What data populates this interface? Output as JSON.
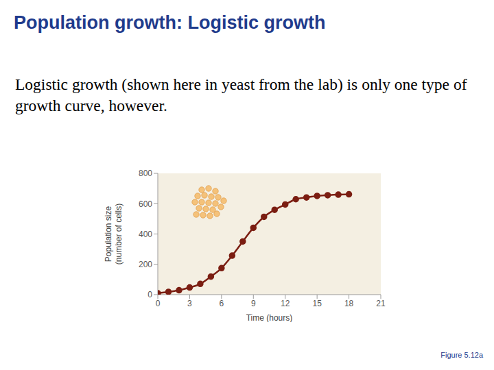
{
  "slide": {
    "title": "Population growth: Logistic growth",
    "text": "Logistic growth (shown here in yeast from the lab) is only one type of growth curve, however.",
    "figure": "Figure 5.12a"
  },
  "chart_data": {
    "type": "line",
    "x": [
      0,
      1,
      2,
      3,
      4,
      5,
      6,
      7,
      8,
      9,
      10,
      11,
      12,
      13,
      14,
      15,
      16,
      17,
      18
    ],
    "series": [
      {
        "name": "Population size",
        "color": "#7b1e12",
        "marker": "circle",
        "values": [
          9.6,
          18.3,
          29,
          47.2,
          71.1,
          119.1,
          174.6,
          257.3,
          350.7,
          441,
          513.3,
          559.7,
          594.8,
          629.4,
          640.8,
          651.1,
          655.9,
          659.6,
          661.8
        ]
      }
    ],
    "xlabel": "Time (hours)",
    "ylabel": "Population size (number of cells)",
    "xlim": [
      0,
      21
    ],
    "xticks": [
      0,
      3,
      6,
      9,
      12,
      15,
      18,
      21
    ],
    "ylim": [
      0,
      800
    ],
    "yticks": [
      0,
      200,
      400,
      600,
      800
    ],
    "grid": false
  }
}
